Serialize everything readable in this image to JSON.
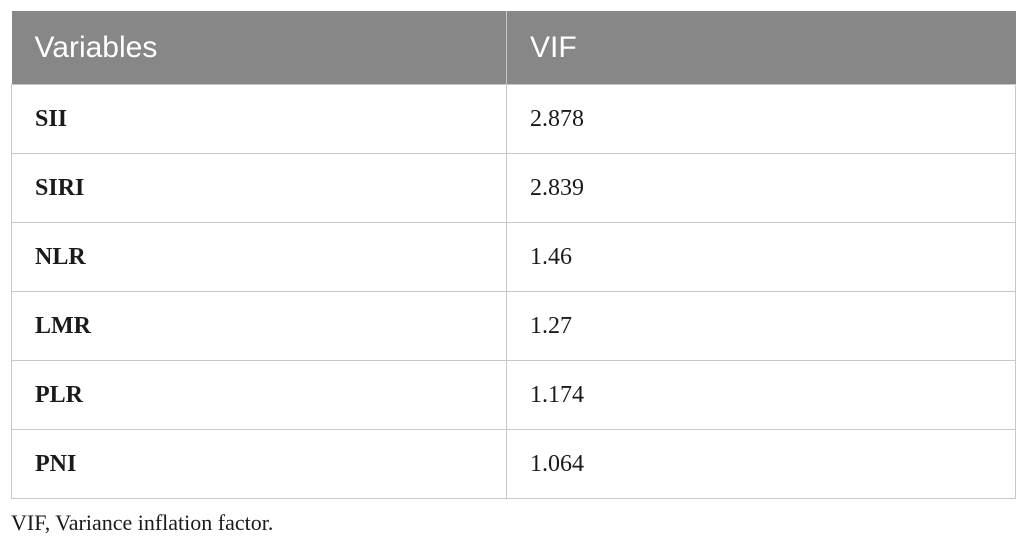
{
  "table": {
    "headers": [
      "Variables",
      "VIF"
    ],
    "rows": [
      {
        "variable": "SII",
        "vif": "2.878"
      },
      {
        "variable": "SIRI",
        "vif": "2.839"
      },
      {
        "variable": "NLR",
        "vif": "1.46"
      },
      {
        "variable": "LMR",
        "vif": "1.27"
      },
      {
        "variable": "PLR",
        "vif": "1.174"
      },
      {
        "variable": "PNI",
        "vif": "1.064"
      }
    ]
  },
  "footnote": "VIF, Variance inflation factor."
}
